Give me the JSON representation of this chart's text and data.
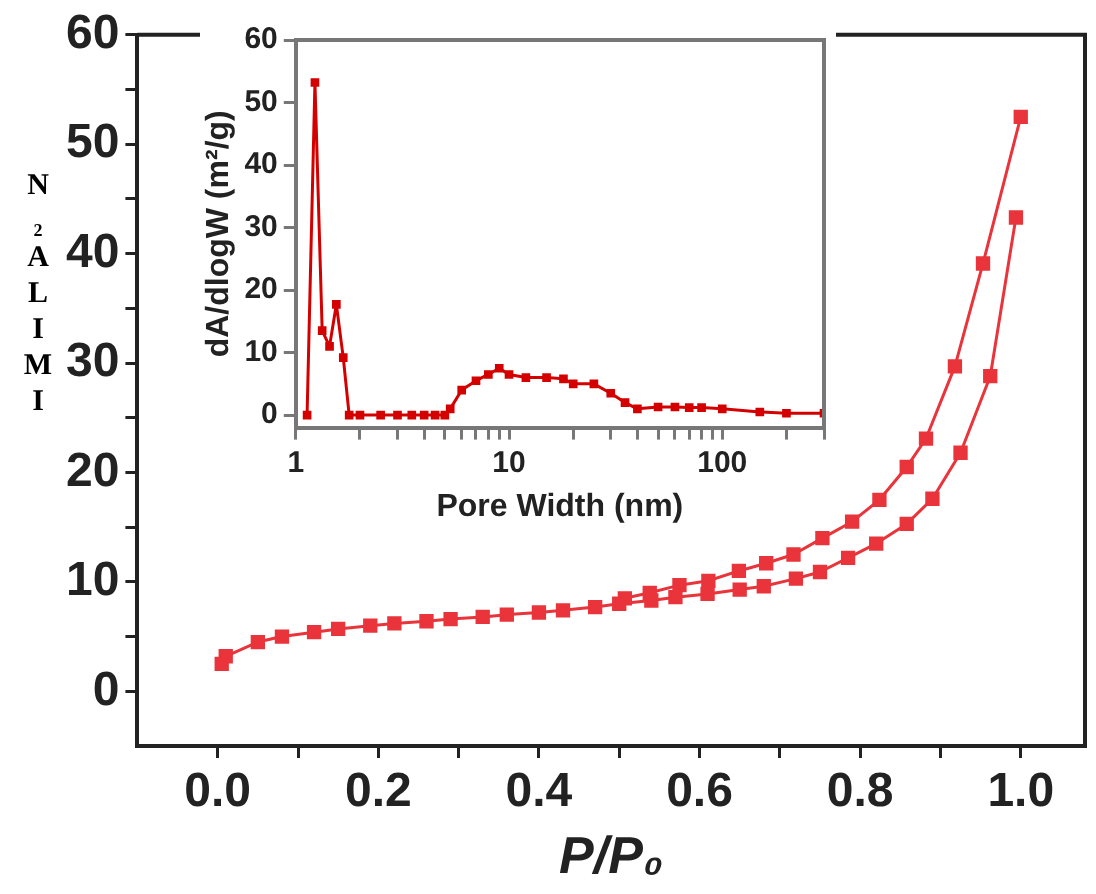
{
  "chart_data": [
    {
      "type": "line",
      "xlabel": "P/P₀",
      "ylabel": "N₂ALIMI",
      "marker": "square",
      "xlim": [
        -0.1,
        1.08
      ],
      "ylim": [
        -5,
        60
      ],
      "xticks": [
        {
          "value": 0,
          "label": "0.0"
        },
        {
          "value": 0.1,
          "label": null
        },
        {
          "value": 0.2,
          "label": "0.2"
        },
        {
          "value": 0.3,
          "label": null
        },
        {
          "value": 0.4,
          "label": "0.4"
        },
        {
          "value": 0.5,
          "label": null
        },
        {
          "value": 0.6,
          "label": "0.6"
        },
        {
          "value": 0.7,
          "label": null
        },
        {
          "value": 0.8,
          "label": "0.8"
        },
        {
          "value": 0.9,
          "label": null
        },
        {
          "value": 1,
          "label": "1.0"
        }
      ],
      "yticks": [
        0,
        {
          "value": 5,
          "label": null
        },
        10,
        {
          "value": 15,
          "label": null
        },
        20,
        {
          "value": 25,
          "label": null
        },
        30,
        {
          "value": 35,
          "label": null
        },
        40,
        {
          "value": 45,
          "label": null
        },
        50,
        {
          "value": 55,
          "label": null
        },
        60
      ],
      "series": [
        {
          "color": "#e8343a",
          "x": [
            0.005,
            0.01,
            0.05,
            0.08,
            0.12,
            0.15,
            0.19,
            0.22,
            0.26,
            0.29,
            0.33,
            0.36,
            0.4,
            0.43,
            0.47,
            0.5,
            0.54,
            0.57,
            0.61,
            0.65,
            0.68,
            0.72,
            0.75,
            0.785,
            0.82,
            0.858,
            0.89,
            0.925,
            0.962,
            0.994
          ],
          "values": [
            2.5,
            3.2,
            4.5,
            5.0,
            5.4,
            5.7,
            6.0,
            6.2,
            6.4,
            6.6,
            6.8,
            7.0,
            7.2,
            7.4,
            7.7,
            8.0,
            8.3,
            8.6,
            8.9,
            9.3,
            9.6,
            10.3,
            10.9,
            12.2,
            13.5,
            15.3,
            17.6,
            21.8,
            28.8,
            43.3
          ]
        },
        {
          "color": "#e8343a",
          "x": [
            0.507,
            0.538,
            0.575,
            0.611,
            0.649,
            0.683,
            0.717,
            0.753,
            0.79,
            0.824,
            0.858,
            0.882,
            0.918,
            0.953,
            1.0
          ],
          "values": [
            8.5,
            9.0,
            9.7,
            10.1,
            11.0,
            11.7,
            12.5,
            14.0,
            15.5,
            17.5,
            20.5,
            23.1,
            29.7,
            39.1,
            52.5
          ]
        }
      ]
    },
    {
      "type": "line",
      "xlabel": "Pore Width (nm)",
      "ylabel": "dA/dlogW (m²/g)",
      "marker": "square",
      "log": "x",
      "xlim": [
        1,
        300
      ],
      "ylim": [
        -2,
        60
      ],
      "xticks": [
        1,
        {
          "value": 2,
          "label": null
        },
        {
          "value": 3,
          "label": null
        },
        {
          "value": 4,
          "label": null
        },
        {
          "value": 5,
          "label": null
        },
        {
          "value": 6,
          "label": null
        },
        {
          "value": 7,
          "label": null
        },
        {
          "value": 8,
          "label": null
        },
        {
          "value": 9,
          "label": null
        },
        10,
        {
          "value": 20,
          "label": null
        },
        {
          "value": 30,
          "label": null
        },
        {
          "value": 40,
          "label": null
        },
        {
          "value": 50,
          "label": null
        },
        {
          "value": 60,
          "label": null
        },
        {
          "value": 70,
          "label": null
        },
        {
          "value": 80,
          "label": null
        },
        {
          "value": 90,
          "label": null
        },
        100,
        {
          "value": 200,
          "label": null
        },
        {
          "value": 300,
          "label": null
        }
      ],
      "yticks": [
        0,
        10,
        20,
        30,
        40,
        50,
        60
      ],
      "series": [
        {
          "color": "#d40000",
          "x": [
            1.13,
            1.23,
            1.33,
            1.44,
            1.55,
            1.67,
            1.78,
            2,
            2.5,
            3,
            3.5,
            4,
            4.5,
            5,
            5.3,
            6,
            7,
            8,
            9,
            10,
            12,
            15,
            18,
            20,
            25,
            30,
            35,
            40,
            50,
            60,
            70,
            80,
            100,
            150,
            200,
            300
          ],
          "values": [
            0,
            53.2,
            13.5,
            11,
            17.7,
            9.2,
            0,
            0,
            0,
            0,
            0,
            0,
            0,
            0,
            1,
            4,
            5.5,
            6.5,
            7.5,
            6.5,
            6,
            6,
            5.8,
            5,
            5,
            3.5,
            2,
            1,
            1.3,
            1.3,
            1.2,
            1.2,
            1,
            0.5,
            0.3,
            0.3
          ]
        }
      ]
    }
  ]
}
